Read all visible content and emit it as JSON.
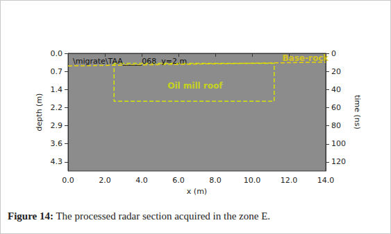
{
  "chart_data": {
    "type": "radargram",
    "title": "\\migrate\\TAA_____068  y=2.m",
    "x_label": "x (m)",
    "y_label": "depth (m)",
    "y2_label": "time (ns)",
    "xlim": [
      0,
      14
    ],
    "xticks": [
      {
        "value": 0,
        "label": "0.0"
      },
      {
        "value": 2,
        "label": "2.0"
      },
      {
        "value": 4,
        "label": "4.0"
      },
      {
        "value": 6,
        "label": "6.0"
      },
      {
        "value": 8,
        "label": "8.0"
      },
      {
        "value": 10,
        "label": "10.0"
      },
      {
        "value": 12,
        "label": "12.0"
      },
      {
        "value": 14,
        "label": "14.0"
      }
    ],
    "ylim": [
      0,
      4.66
    ],
    "yticks": [
      {
        "value": 0,
        "label": "0.0"
      },
      {
        "value": 0.717,
        "label": "0.7"
      },
      {
        "value": 1.433,
        "label": "1.4"
      },
      {
        "value": 2.15,
        "label": "2.2"
      },
      {
        "value": 2.867,
        "label": "2.9"
      },
      {
        "value": 3.583,
        "label": "3.6"
      },
      {
        "value": 4.3,
        "label": "4.3"
      }
    ],
    "y2lim": [
      0,
      130
    ],
    "y2ticks": [
      0,
      20,
      40,
      60,
      80,
      100,
      120
    ],
    "annotations": [
      {
        "label": "Base-rock",
        "color": "#e8d400",
        "line_style": "dashed",
        "x": [
          0,
          14
        ],
        "y": [
          0.5,
          0.35
        ],
        "label_x": 12.9,
        "label_y": 0.2
      },
      {
        "label": "Oil mill roof",
        "color": "#d6e600",
        "line_style": "dashed",
        "x": [
          2.5,
          11.2,
          11.2,
          2.5,
          2.5
        ],
        "y": [
          0.4,
          0.4,
          1.9,
          1.9,
          0.4
        ],
        "label_x": 6.9,
        "label_y": 1.3
      }
    ],
    "caption_label": "Figure 14:",
    "caption": "The processed radar section acquired in the zone E."
  }
}
